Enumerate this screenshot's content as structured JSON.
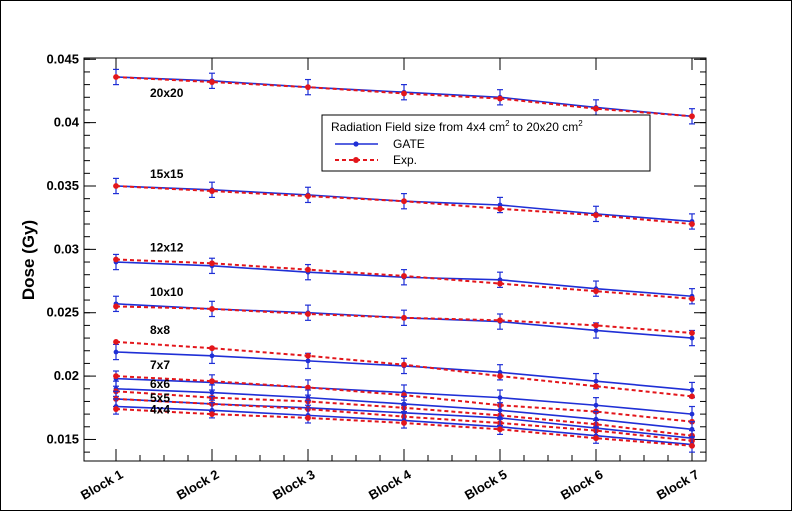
{
  "chart_data": {
    "type": "line",
    "categories": [
      "Block 1",
      "Block 2",
      "Block 3",
      "Block 4",
      "Block 5",
      "Block 6",
      "Block 7"
    ],
    "ylabel": "Dose (Gy)",
    "ylim": [
      0.0133,
      0.0451
    ],
    "yticks": [
      "0.015",
      "0.02",
      "0.025",
      "0.03",
      "0.035",
      "0.04",
      "0.045"
    ],
    "yticks_values": [
      0.015,
      0.02,
      0.025,
      0.03,
      0.035,
      0.04,
      0.045
    ],
    "legend": {
      "title_prefix": "Radiation Field size from 4x4 cm",
      "title_mid": " to 20x20 cm",
      "sup": "2",
      "entries": [
        "GATE",
        "Exp."
      ]
    },
    "colors": {
      "gate": "#1f2fd6",
      "exp": "#e3161b",
      "error_bar": "#1f2fd6"
    },
    "error": 0.0006,
    "groups": [
      {
        "label": "20x20",
        "gate": [
          0.0436,
          0.0433,
          0.0428,
          0.0424,
          0.042,
          0.0412,
          0.0405
        ],
        "exp": [
          0.0436,
          0.0432,
          0.0428,
          0.0423,
          0.0419,
          0.0411,
          0.0405
        ]
      },
      {
        "label": "15x15",
        "gate": [
          0.035,
          0.0347,
          0.0343,
          0.0338,
          0.0335,
          0.0328,
          0.0322
        ],
        "exp": [
          0.035,
          0.0346,
          0.0342,
          0.0338,
          0.0332,
          0.0327,
          0.032
        ]
      },
      {
        "label": "12x12",
        "gate": [
          0.029,
          0.0287,
          0.0282,
          0.0278,
          0.0276,
          0.0269,
          0.0263
        ],
        "exp": [
          0.0292,
          0.0289,
          0.0284,
          0.0279,
          0.0273,
          0.0267,
          0.0261
        ]
      },
      {
        "label": "10x10",
        "gate": [
          0.0257,
          0.0253,
          0.025,
          0.0246,
          0.0243,
          0.0236,
          0.023
        ],
        "exp": [
          0.0255,
          0.0253,
          0.0249,
          0.0246,
          0.0244,
          0.024,
          0.0234
        ]
      },
      {
        "label": "8x8",
        "gate": [
          0.0219,
          0.0216,
          0.0212,
          0.0208,
          0.0203,
          0.0196,
          0.0189
        ],
        "exp": [
          0.0227,
          0.0222,
          0.0216,
          0.0209,
          0.02,
          0.0192,
          0.0184
        ]
      },
      {
        "label": "7x7",
        "gate": [
          0.0198,
          0.0195,
          0.0191,
          0.0187,
          0.0183,
          0.0177,
          0.017
        ],
        "exp": [
          0.02,
          0.0196,
          0.0191,
          0.0185,
          0.0177,
          0.0172,
          0.0164
        ]
      },
      {
        "label": "6x6",
        "gate": [
          0.019,
          0.0187,
          0.0183,
          0.0178,
          0.0173,
          0.0166,
          0.0158
        ],
        "exp": [
          0.0188,
          0.0183,
          0.018,
          0.0175,
          0.0169,
          0.0162,
          0.0153
        ]
      },
      {
        "label": "5x5",
        "gate": [
          0.0182,
          0.0178,
          0.0175,
          0.0171,
          0.0167,
          0.0159,
          0.0151
        ],
        "exp": [
          0.0182,
          0.0178,
          0.0174,
          0.0168,
          0.0163,
          0.0157,
          0.0149
        ]
      },
      {
        "label": "4x4",
        "gate": [
          0.0176,
          0.0173,
          0.0169,
          0.0165,
          0.016,
          0.0153,
          0.0146
        ],
        "exp": [
          0.0174,
          0.017,
          0.0167,
          0.0163,
          0.0158,
          0.0151,
          0.0145
        ]
      }
    ]
  }
}
